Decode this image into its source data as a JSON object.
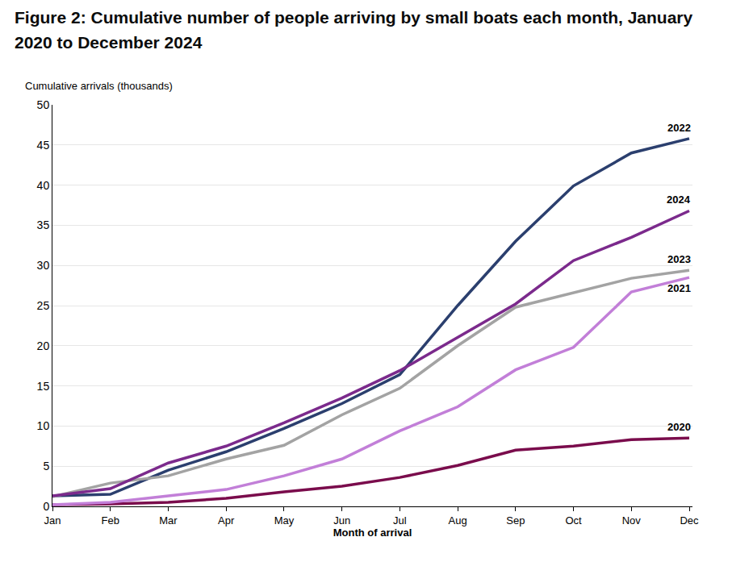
{
  "chart_data": {
    "type": "line",
    "title": "Figure 2: Cumulative number of people arriving by small boats each month, January 2020 to December 2024",
    "x_label": "Month of arrival",
    "y_label": "Cumulative arrivals (thousands)",
    "categories": [
      "Jan",
      "Feb",
      "Mar",
      "Apr",
      "May",
      "Jun",
      "Jul",
      "Aug",
      "Sep",
      "Oct",
      "Nov",
      "Dec"
    ],
    "series": [
      {
        "name": "2020",
        "color": "#7a0c4c",
        "values": [
          0.2,
          0.3,
          0.5,
          1.0,
          1.8,
          2.5,
          3.6,
          5.1,
          7.0,
          7.5,
          8.3,
          8.5
        ]
      },
      {
        "name": "2021",
        "color": "#c27fd8",
        "values": [
          0.2,
          0.5,
          1.3,
          2.1,
          3.8,
          5.9,
          9.4,
          12.4,
          17.0,
          19.8,
          26.7,
          28.5
        ]
      },
      {
        "name": "2022",
        "color": "#2b3f6e",
        "values": [
          1.3,
          1.5,
          4.5,
          6.8,
          9.7,
          12.8,
          16.4,
          25.0,
          33.0,
          39.9,
          44.0,
          45.8
        ]
      },
      {
        "name": "2023",
        "color": "#a3a3a3",
        "values": [
          1.2,
          2.9,
          3.8,
          5.9,
          7.6,
          11.4,
          14.7,
          20.0,
          24.8,
          26.6,
          28.4,
          29.4
        ]
      },
      {
        "name": "2024",
        "color": "#7b2a8c",
        "values": [
          1.3,
          2.2,
          5.4,
          7.5,
          10.4,
          13.5,
          16.9,
          21.0,
          25.2,
          30.6,
          33.5,
          36.8
        ]
      }
    ],
    "ylim": [
      0,
      50
    ],
    "yticks": [
      0,
      5,
      10,
      15,
      20,
      25,
      30,
      35,
      40,
      45,
      50
    ],
    "grid": true
  }
}
